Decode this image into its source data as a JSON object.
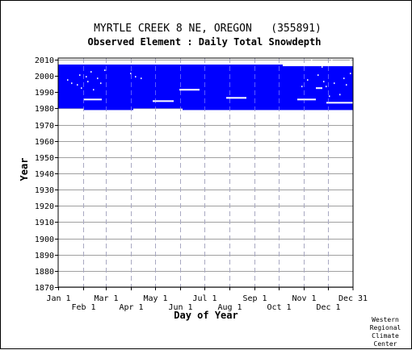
{
  "chart_data": {
    "type": "heatmap",
    "title": "MYRTLE CREEK 8 NE, OREGON   (355891)",
    "subtitle": "Observed Element : Daily Total Snowdepth",
    "xlabel": "Day of Year",
    "ylabel": "Year",
    "x_ticks_row1": [
      "Jan 1",
      "Mar 1",
      "May 1",
      "Jul 1",
      "Sep 1",
      "Nov 1",
      "Dec 31"
    ],
    "x_ticks_row1_days": [
      1,
      60,
      121,
      182,
      244,
      305,
      365
    ],
    "x_ticks_row2": [
      "Feb 1",
      "Apr 1",
      "Jun 1",
      "Aug 1",
      "Oct 1",
      "Dec 1"
    ],
    "x_ticks_row2_days": [
      32,
      91,
      152,
      213,
      274,
      335
    ],
    "xlim": [
      1,
      366
    ],
    "y_ticks": [
      "2010",
      "2000",
      "1990",
      "1980",
      "1970",
      "1960",
      "1950",
      "1940",
      "1930",
      "1920",
      "1910",
      "1900",
      "1890",
      "1880",
      "1870"
    ],
    "ylim": [
      1870,
      2011
    ],
    "vertical_gridlines_dashed": true,
    "horizontal_gridlines": true,
    "data_color": "#0000ff",
    "coverage_blocks": [
      {
        "day_start": 1,
        "day_end": 33,
        "year_start": 1980,
        "year_end": 2007
      },
      {
        "day_start": 33,
        "day_end": 94,
        "year_start": 1979,
        "year_end": 2007
      },
      {
        "day_start": 94,
        "day_end": 155,
        "year_start": 1980,
        "year_end": 2007
      },
      {
        "day_start": 155,
        "day_end": 217,
        "year_start": 1979,
        "year_end": 2007
      },
      {
        "day_start": 217,
        "day_end": 279,
        "year_start": 1979,
        "year_end": 2007
      },
      {
        "day_start": 279,
        "day_end": 340,
        "year_start": 1979,
        "year_end": 2006
      },
      {
        "day_start": 340,
        "day_end": 366,
        "year_start": 1979,
        "year_end": 2006
      }
    ],
    "missing_records": [
      {
        "day_start": 33,
        "day_end": 55,
        "year": 1985
      },
      {
        "day_start": 118,
        "day_end": 144,
        "year": 1984
      },
      {
        "day_start": 151,
        "day_end": 176,
        "year": 1991
      },
      {
        "day_start": 209,
        "day_end": 234,
        "year": 1986
      },
      {
        "day_start": 297,
        "day_end": 320,
        "year": 1985
      },
      {
        "day_start": 320,
        "day_end": 328,
        "year": 1992
      },
      {
        "day_start": 333,
        "day_end": 366,
        "year": 1983
      },
      {
        "day_start": 12,
        "day_end": 13,
        "year": 1997
      },
      {
        "day_start": 17,
        "day_end": 18,
        "year": 1995
      },
      {
        "day_start": 24,
        "day_end": 25,
        "year": 1994
      },
      {
        "day_start": 27,
        "day_end": 28,
        "year": 2000
      },
      {
        "day_start": 29,
        "day_end": 30,
        "year": 1992
      },
      {
        "day_start": 35,
        "day_end": 36,
        "year": 1999
      },
      {
        "day_start": 37,
        "day_end": 38,
        "year": 1996
      },
      {
        "day_start": 41,
        "day_end": 42,
        "year": 2002
      },
      {
        "day_start": 44,
        "day_end": 45,
        "year": 1991
      },
      {
        "day_start": 49,
        "day_end": 50,
        "year": 1998
      },
      {
        "day_start": 53,
        "day_end": 54,
        "year": 1995
      },
      {
        "day_start": 58,
        "day_end": 59,
        "year": 2003
      },
      {
        "day_start": 90,
        "day_end": 91,
        "year": 2001
      },
      {
        "day_start": 96,
        "day_end": 97,
        "year": 1999
      },
      {
        "day_start": 103,
        "day_end": 104,
        "year": 1998
      },
      {
        "day_start": 302,
        "day_end": 303,
        "year": 1993
      },
      {
        "day_start": 309,
        "day_end": 310,
        "year": 1997
      },
      {
        "day_start": 314,
        "day_end": 315,
        "year": 2009
      },
      {
        "day_start": 322,
        "day_end": 323,
        "year": 2000
      },
      {
        "day_start": 327,
        "day_end": 328,
        "year": 2005
      },
      {
        "day_start": 329,
        "day_end": 330,
        "year": 1996
      },
      {
        "day_start": 332,
        "day_end": 333,
        "year": 1993
      },
      {
        "day_start": 336,
        "day_end": 337,
        "year": 1987
      },
      {
        "day_start": 339,
        "day_end": 340,
        "year": 2009
      },
      {
        "day_start": 342,
        "day_end": 343,
        "year": 1995
      },
      {
        "day_start": 349,
        "day_end": 350,
        "year": 1988
      },
      {
        "day_start": 354,
        "day_end": 355,
        "year": 1998
      },
      {
        "day_start": 357,
        "day_end": 358,
        "year": 1994
      },
      {
        "day_start": 362,
        "day_end": 363,
        "year": 2009
      },
      {
        "day_start": 362,
        "day_end": 363,
        "year": 2001
      }
    ]
  },
  "credit": {
    "line1": "Western",
    "line2": "Regional",
    "line3": "Climate",
    "line4": "Center"
  }
}
